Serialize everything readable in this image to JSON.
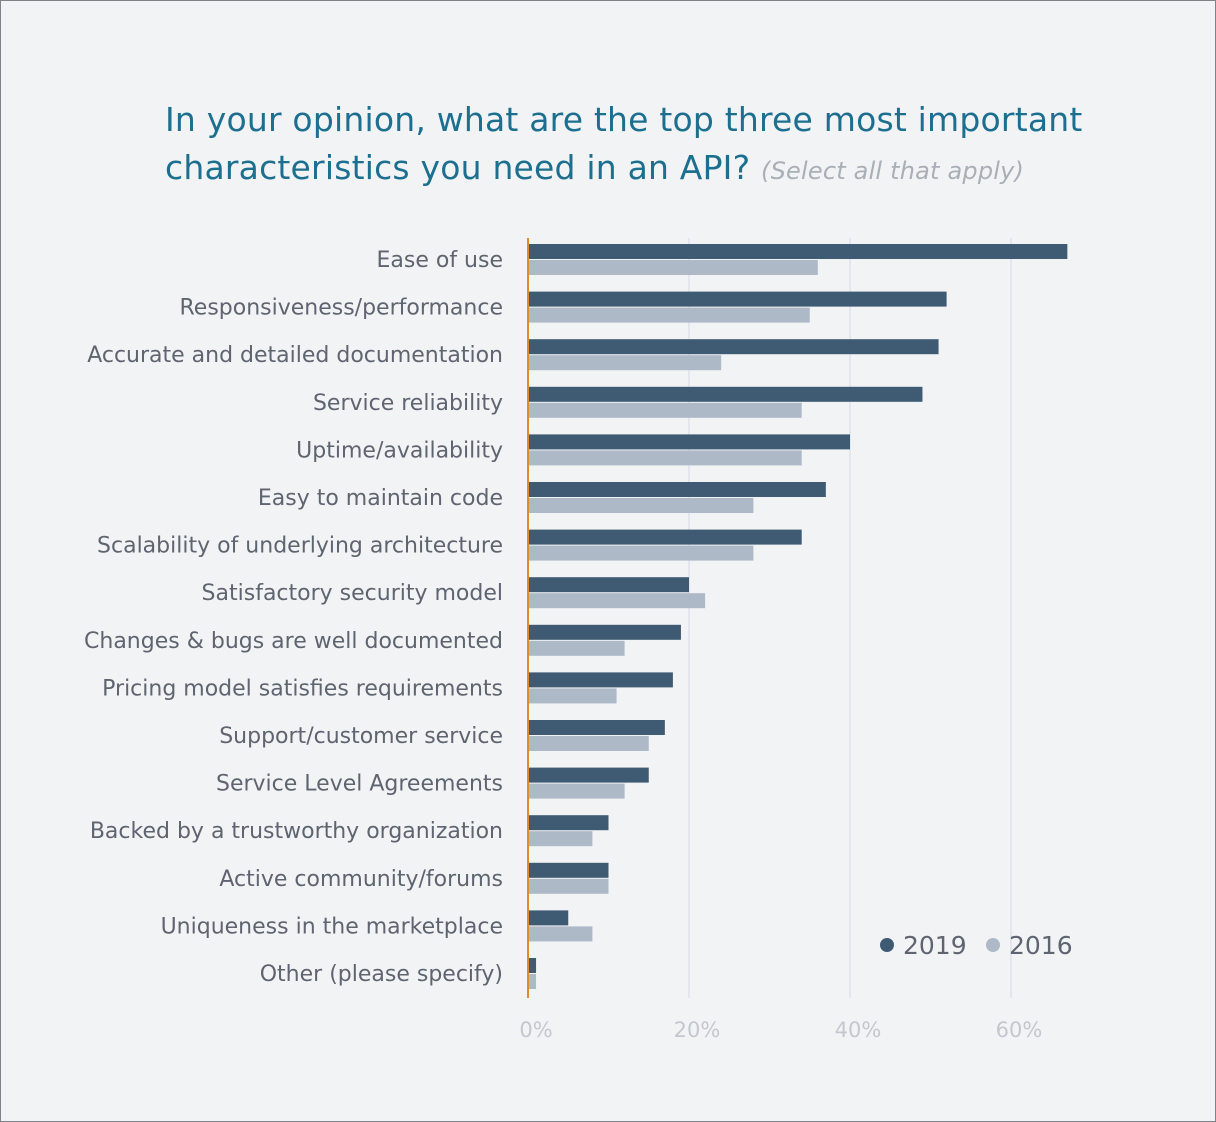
{
  "title": {
    "main": "In your opinion, what are the top three most important characteristics you need in an API?",
    "note": "(Select all that apply)"
  },
  "chart_data": {
    "type": "bar",
    "orientation": "horizontal",
    "categories": [
      "Ease of use",
      "Responsiveness/performance",
      "Accurate and detailed documentation",
      "Service reliability",
      "Uptime/availability",
      "Easy to maintain code",
      "Scalability of underlying architecture",
      "Satisfactory security model",
      "Changes & bugs are well documented",
      "Pricing model satisfies requirements",
      "Support/customer service",
      "Service Level Agreements",
      "Backed by a trustworthy organization",
      "Active community/forums",
      "Uniqueness in the marketplace",
      "Other (please specify)"
    ],
    "series": [
      {
        "name": "2019",
        "color": "#3f5b73",
        "values": [
          67,
          52,
          51,
          49,
          40,
          37,
          34,
          20,
          19,
          18,
          17,
          15,
          10,
          10,
          5,
          1
        ]
      },
      {
        "name": "2016",
        "color": "#aeb9c7",
        "values": [
          36,
          35,
          24,
          34,
          34,
          28,
          28,
          22,
          12,
          11,
          15,
          12,
          8,
          10,
          8,
          1
        ]
      }
    ],
    "xlim": [
      0,
      70
    ],
    "xticks": [
      "0%",
      "20%",
      "40%",
      "60%"
    ],
    "tick_values": [
      0,
      20,
      40,
      60
    ],
    "grid": true,
    "legend": "bottom-right",
    "baseline_color": "#e08a2c",
    "grid_color": "#e3e6ec"
  }
}
